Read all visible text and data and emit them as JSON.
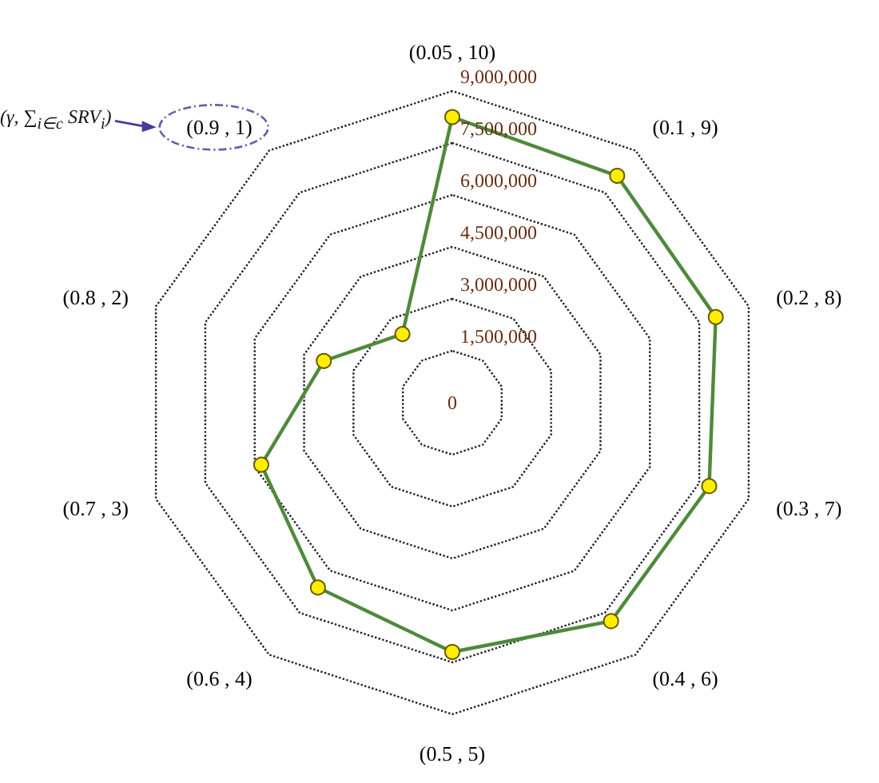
{
  "chart_data": {
    "type": "radar",
    "categories": [
      "(0.05 , 10)",
      "(0.1 , 9)",
      "(0.2 , 8)",
      "(0.3 , 7)",
      "(0.4 , 6)",
      "(0.5 , 5)",
      "(0.6 , 4)",
      "(0.7 , 3)",
      "(0.8 , 2)",
      "(0.9 , 1)"
    ],
    "series": [
      {
        "color": "#4e8a3c",
        "values": [
          8250000,
          8100000,
          8000000,
          7800000,
          7800000,
          7200000,
          6600000,
          5800000,
          3900000,
          2450000
        ]
      }
    ],
    "ylim": [
      0,
      9000000
    ],
    "yticks": [
      {
        "value": 0,
        "label": "0"
      },
      {
        "value": 1500000,
        "label": "1,500,000"
      },
      {
        "value": 3000000,
        "label": "3,000,000"
      },
      {
        "value": 4500000,
        "label": "4,500,000"
      },
      {
        "value": 6000000,
        "label": "6,000,000"
      },
      {
        "value": 7500000,
        "label": "7,500,000"
      },
      {
        "value": 9000000,
        "label": "9,000,000"
      }
    ],
    "grid": true,
    "marker": "circle",
    "line_style": "solid",
    "annotations": [
      "(γ, ∑$_{i∈c}$ SRV$_{i}$)"
    ]
  }
}
